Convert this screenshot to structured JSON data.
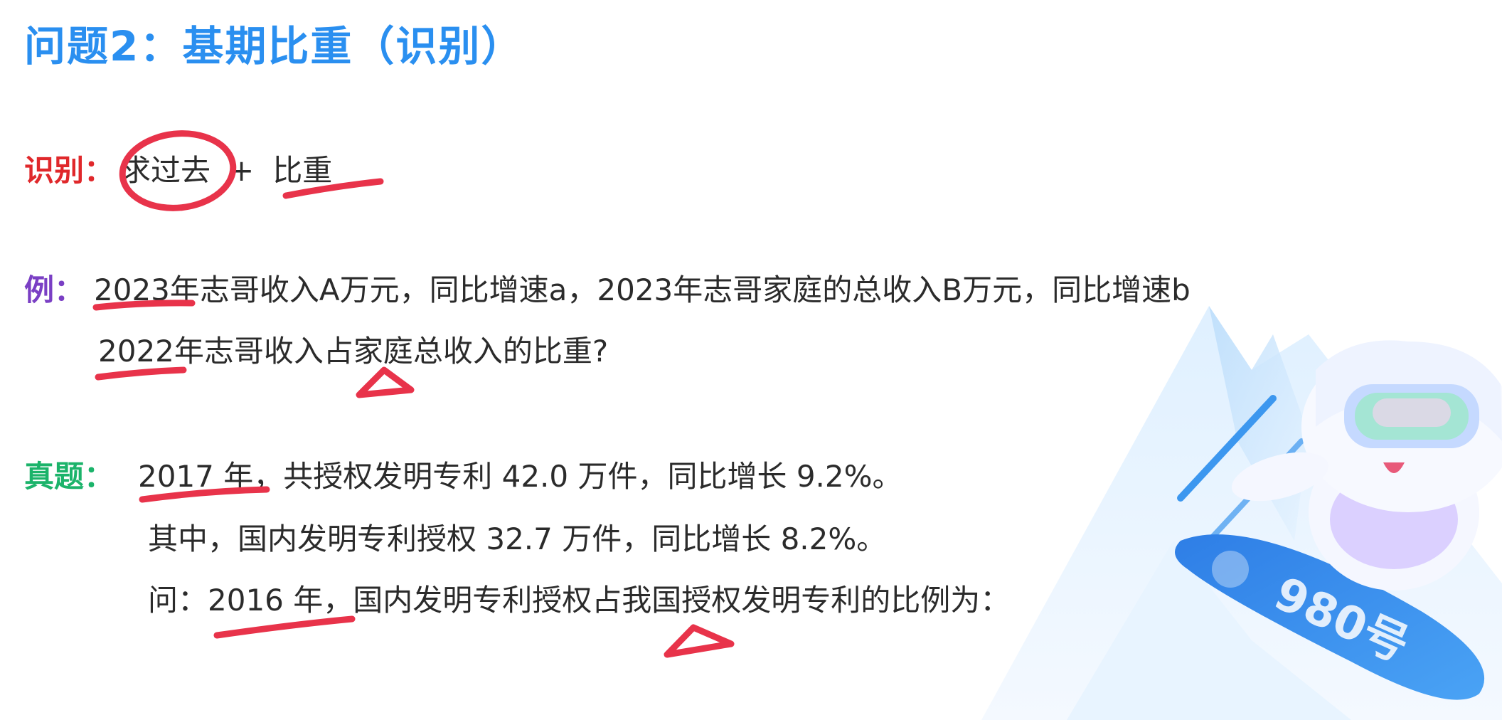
{
  "title": "问题2：基期比重（识别）",
  "identify": {
    "tag": "识别：",
    "part1": "求过去",
    "plus": "+",
    "part2": "比重"
  },
  "example": {
    "tag": "例：",
    "line1": "2023年志哥收入A万元，同比增速a，2023年志哥家庭的总收入B万元，同比增速b",
    "line2": "2022年志哥收入占家庭总收入的比重?"
  },
  "real_question": {
    "tag": "真题：",
    "line1": "2017 年，共授权发明专利 42.0 万件，同比增长 9.2%。",
    "line2": "其中，国内发明专利授权 32.7 万件，同比增长 8.2%。",
    "line3": "问：2016 年，国内发明专利授权占我国授权发明专利的比例为："
  },
  "mascot": {
    "board_text": "980号"
  },
  "colors": {
    "title": "#2a8ff0",
    "tag_identify": "#e0282b",
    "tag_example": "#7a3fc4",
    "tag_real": "#1bb36a",
    "ink": "#e8334a"
  }
}
